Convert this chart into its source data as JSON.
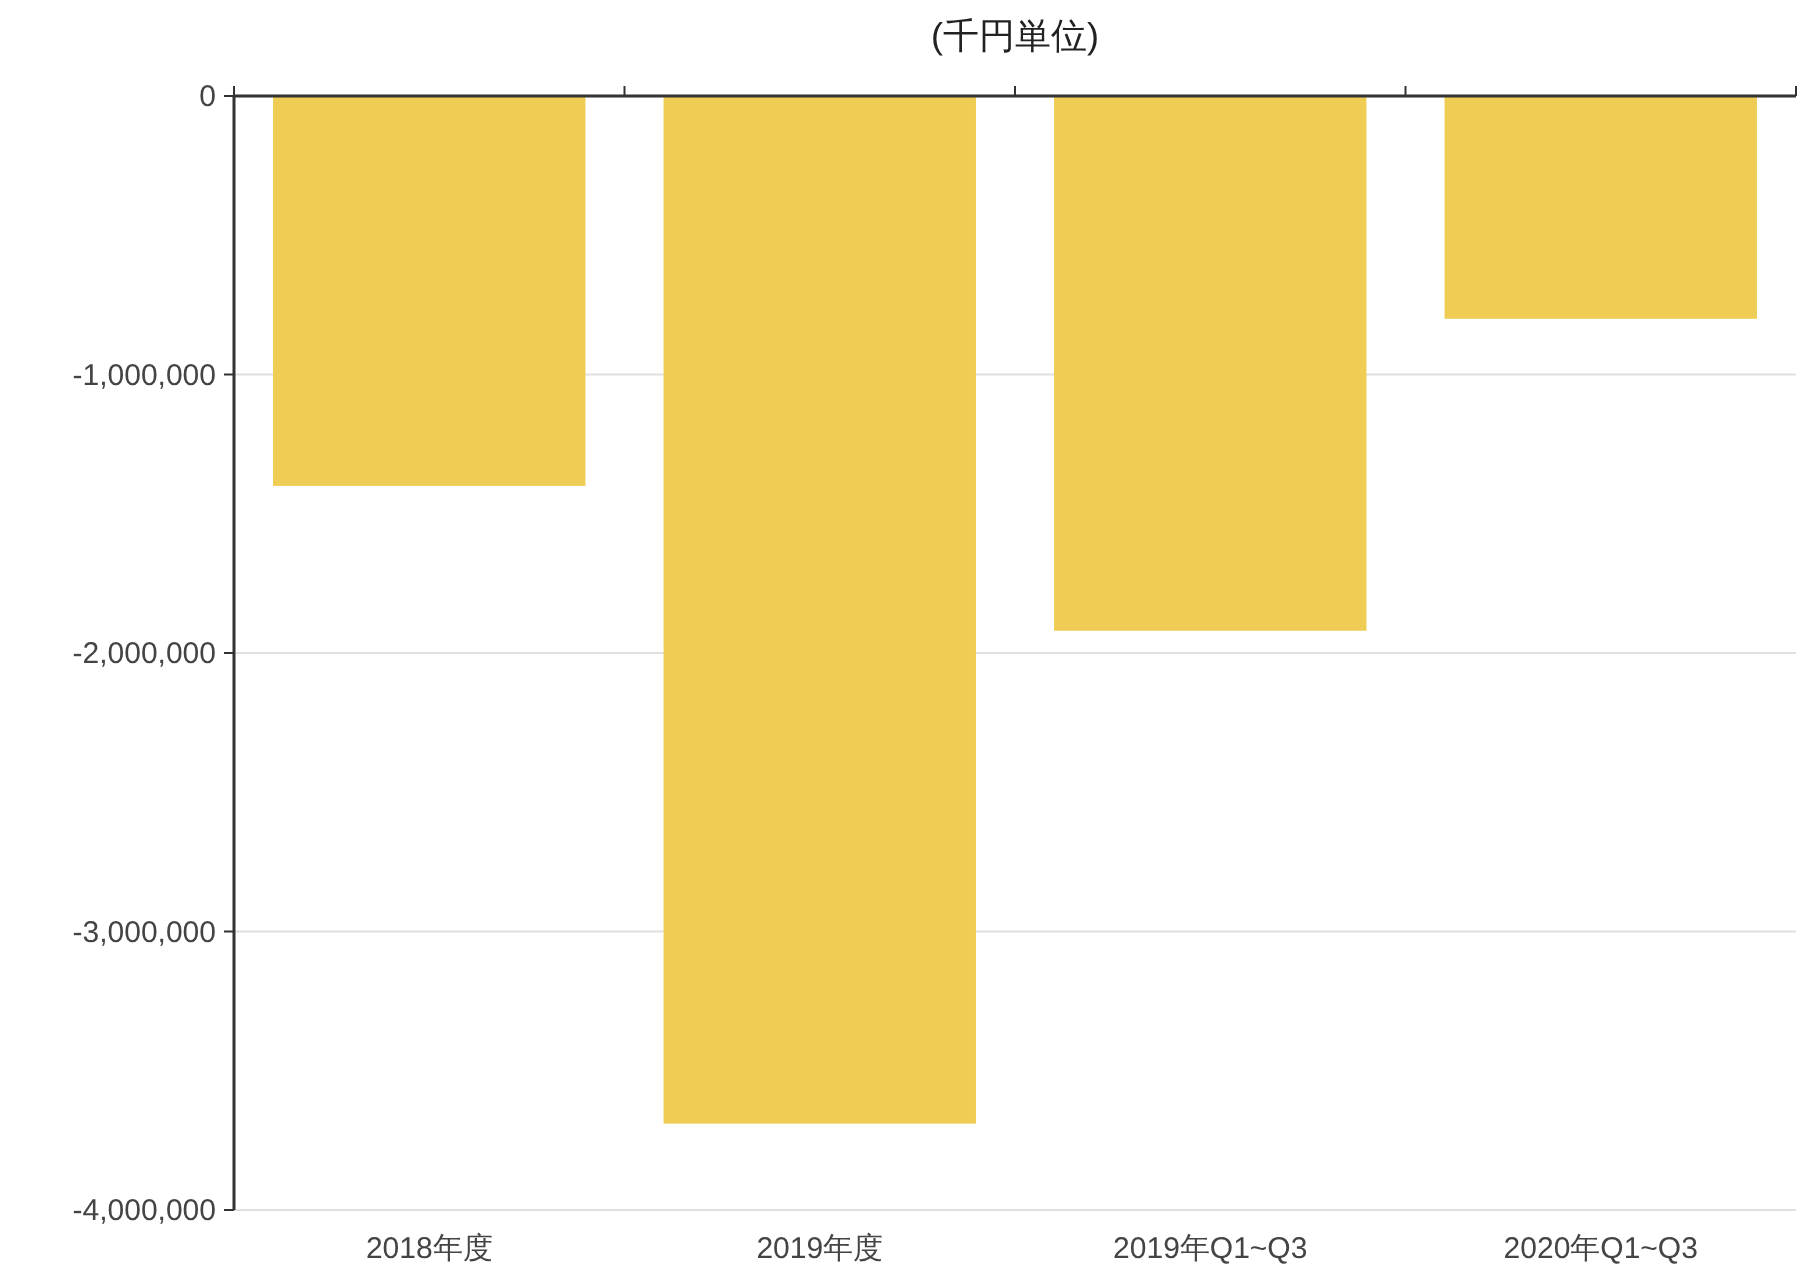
{
  "chart_data": {
    "type": "bar",
    "title": "(千円単位)",
    "categories": [
      "2018年度",
      "2019年度",
      "2019年Q1~Q3",
      "2020年Q1~Q3"
    ],
    "values": [
      -1400000,
      -3690000,
      -1920000,
      -800000
    ],
    "color": "#efcc53",
    "ylim": [
      -4000000,
      0
    ],
    "yticks": [
      {
        "value": 0,
        "label": "0"
      },
      {
        "value": -1000000,
        "label": "-1,000,000"
      },
      {
        "value": -2000000,
        "label": "-2,000,000"
      },
      {
        "value": -3000000,
        "label": "-3,000,000"
      },
      {
        "value": -4000000,
        "label": "-4,000,000"
      }
    ],
    "grid": "y"
  }
}
